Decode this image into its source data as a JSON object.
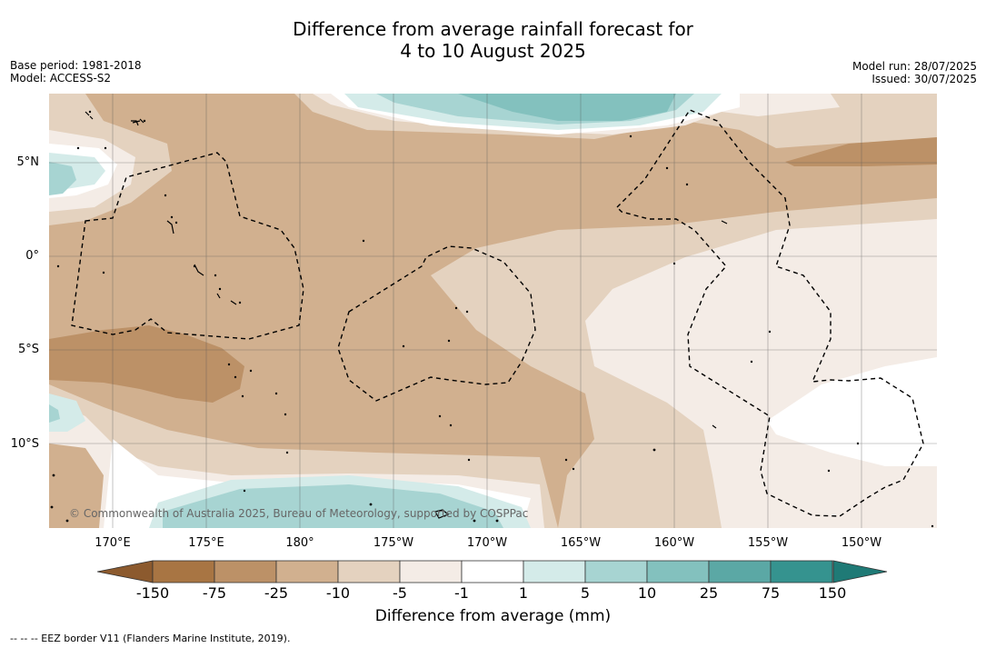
{
  "title": {
    "line1": "Difference from average rainfall forecast for",
    "line2": "4 to 10 August 2025"
  },
  "meta_left": {
    "base_period": "Base period: 1981-2018",
    "model": "Model: ACCESS-S2"
  },
  "meta_right": {
    "model_run": "Model run: 28/07/2025",
    "issued": "Issued: 30/07/2025"
  },
  "lat_labels": [
    "5°N",
    "0°",
    "5°S",
    "10°S"
  ],
  "lon_labels": [
    "170°E",
    "175°E",
    "180°",
    "175°W",
    "170°W",
    "165°W",
    "160°W",
    "155°W",
    "150°W"
  ],
  "copyright": "© Commonwealth of Australia 2025, Bureau of Meteorology, supported by COSPPac",
  "colorbar": {
    "ticks": [
      "-150",
      "-75",
      "-25",
      "-10",
      "-5",
      "-1",
      "1",
      "5",
      "10",
      "25",
      "75",
      "150"
    ],
    "colors": [
      "#a87543",
      "#bc9167",
      "#d1b08f",
      "#e4d2bf",
      "#f4ece6",
      "#ffffff",
      "#d4ebe9",
      "#a7d4d2",
      "#83c1be",
      "#5ba8a5",
      "#35938f"
    ],
    "under_color": "#8c5a2e",
    "over_color": "#1f7a76",
    "label": "Difference from average (mm)"
  },
  "footnote": "--  --  -- EEZ border V11 (Flanders Marine Institute, 2019)."
}
